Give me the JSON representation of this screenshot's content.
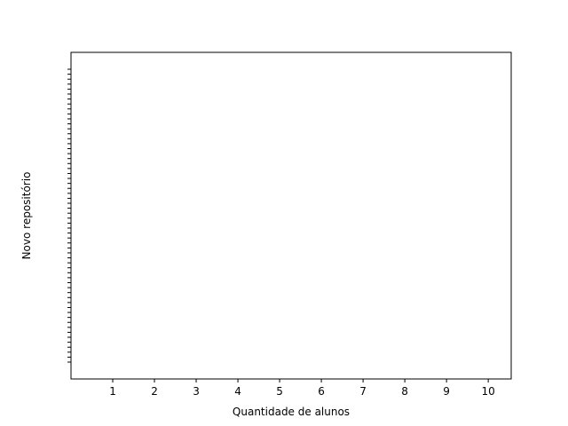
{
  "chart_data": {
    "type": "bar",
    "orientation": "horizontal",
    "x_label": "Quantidade de alunos",
    "y_label": "Novo repositório",
    "categories": [
      null,
      null,
      null,
      null,
      null,
      null,
      null,
      null,
      null,
      null,
      null,
      null,
      null,
      null,
      null,
      null,
      null,
      null,
      null,
      null,
      null,
      null,
      null,
      null,
      null,
      null,
      null,
      null,
      null,
      null,
      null,
      null,
      null,
      null,
      null,
      null,
      null,
      null,
      null,
      null,
      null,
      null,
      null,
      null,
      null,
      null,
      null,
      null,
      null,
      null,
      null,
      null,
      null,
      null,
      null,
      null,
      null,
      null,
      null,
      null
    ],
    "xlim": [
      0,
      10.55
    ],
    "xticks": [
      1,
      2,
      3,
      4,
      5,
      6,
      7,
      8,
      9,
      10
    ]
  }
}
